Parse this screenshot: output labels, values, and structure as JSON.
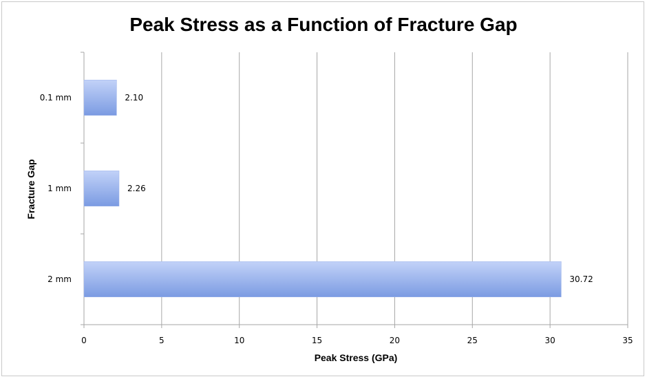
{
  "chart_data": {
    "type": "bar",
    "orientation": "horizontal",
    "title": "Peak Stress as a Function of Fracture Gap",
    "xlabel": "Peak Stress (GPa)",
    "ylabel": "Fracture Gap",
    "categories": [
      "0.1 mm",
      "1 mm",
      "2 mm"
    ],
    "values": [
      2.1,
      2.26,
      30.72
    ],
    "value_labels": [
      "2.10",
      "2.26",
      "30.72"
    ],
    "xlim": [
      0,
      35
    ],
    "xticks": [
      0,
      5,
      10,
      15,
      20,
      25,
      30,
      35
    ],
    "grid": true,
    "legend": "none",
    "bar_color_top": "#c2d2f8",
    "bar_color_bottom": "#7b9be2"
  }
}
